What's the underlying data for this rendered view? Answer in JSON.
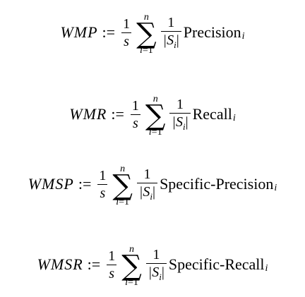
{
  "equations": [
    {
      "lhs": "WMP",
      "assign": ":=",
      "frac1_num": "1",
      "frac1_den": "s",
      "sum_upper": "n",
      "sum_lower_var": "i",
      "sum_lower_eq": "=1",
      "frac2_num": "1",
      "frac2_den": "|S",
      "frac2_den_sub": "i",
      "frac2_den_close": "|",
      "term": "Precision",
      "term_sub": "i"
    },
    {
      "lhs": "WMR",
      "assign": ":=",
      "frac1_num": "1",
      "frac1_den": "s",
      "sum_upper": "n",
      "sum_lower_var": "i",
      "sum_lower_eq": "=1",
      "frac2_num": "1",
      "frac2_den": "|S",
      "frac2_den_sub": "i",
      "frac2_den_close": "|",
      "term": "Recall",
      "term_sub": "i"
    },
    {
      "lhs": "WMSP",
      "assign": ":=",
      "frac1_num": "1",
      "frac1_den": "s",
      "sum_upper": "n",
      "sum_lower_var": "i",
      "sum_lower_eq": "=1",
      "frac2_num": "1",
      "frac2_den": "|S",
      "frac2_den_sub": "i",
      "frac2_den_close": "|",
      "term": "Specific-Precision",
      "term_sub": "i"
    },
    {
      "lhs": "WMSR",
      "assign": ":=",
      "frac1_num": "1",
      "frac1_den": "s",
      "sum_upper": "n",
      "sum_lower_var": "i",
      "sum_lower_eq": "=1",
      "frac2_num": "1",
      "frac2_den": "|S",
      "frac2_den_sub": "i",
      "frac2_den_close": "|",
      "term": "Specific-Recall",
      "term_sub": "i"
    }
  ]
}
